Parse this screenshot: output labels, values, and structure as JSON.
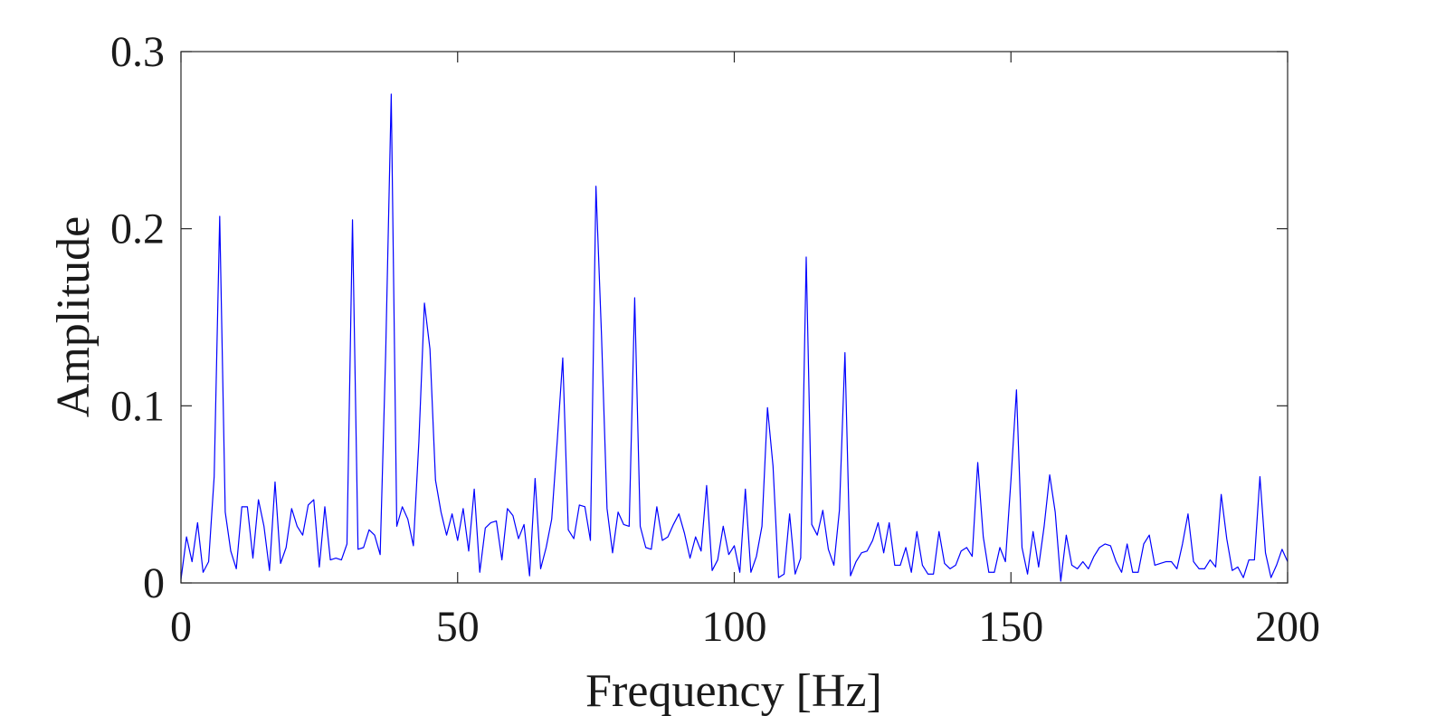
{
  "chart_data": {
    "type": "line",
    "title": "",
    "xlabel": "Frequency [Hz]",
    "ylabel": "Amplitude",
    "xlim": [
      0,
      200
    ],
    "ylim": [
      0,
      0.3
    ],
    "xticks": [
      0,
      50,
      100,
      150,
      200
    ],
    "xtick_labels": [
      "0",
      "50",
      "100",
      "150",
      "200"
    ],
    "yticks": [
      0,
      0.1,
      0.2,
      0.3
    ],
    "ytick_labels": [
      "0",
      "0.1",
      "0.2",
      "0.3"
    ],
    "grid": false,
    "box": true,
    "line_color": "#0000ff",
    "series": [
      {
        "x": [
          0,
          1,
          2,
          3,
          4,
          5,
          6,
          7,
          8,
          9,
          10,
          11,
          12,
          13,
          14,
          15,
          16,
          17,
          18,
          19,
          20,
          21,
          22,
          23,
          24,
          25,
          26,
          27,
          28,
          29,
          30,
          31,
          32,
          33,
          34,
          35,
          36,
          37,
          38,
          39,
          40,
          41,
          42,
          43,
          44,
          45,
          46,
          47,
          48,
          49,
          50,
          51,
          52,
          53,
          54,
          55,
          56,
          57,
          58,
          59,
          60,
          61,
          62,
          63,
          64,
          65,
          66,
          67,
          68,
          69,
          70,
          71,
          72,
          73,
          74,
          75,
          76,
          77,
          78,
          79,
          80,
          81,
          82,
          83,
          84,
          85,
          86,
          87,
          88,
          89,
          90,
          91,
          92,
          93,
          94,
          95,
          96,
          97,
          98,
          99,
          100,
          101,
          102,
          103,
          104,
          105,
          106,
          107,
          108,
          109,
          110,
          111,
          112,
          113,
          114,
          115,
          116,
          117,
          118,
          119,
          120,
          121,
          122,
          123,
          124,
          125,
          126,
          127,
          128,
          129,
          130,
          131,
          132,
          133,
          134,
          135,
          136,
          137,
          138,
          139,
          140,
          141,
          142,
          143,
          144,
          145,
          146,
          147,
          148,
          149,
          150,
          151,
          152,
          153,
          154,
          155,
          156,
          157,
          158,
          159,
          160,
          161,
          162,
          163,
          164,
          165,
          166,
          167,
          168,
          169,
          170,
          171,
          172,
          173,
          174,
          175,
          176,
          177,
          178,
          179,
          180,
          181,
          182,
          183,
          184,
          185,
          186,
          187,
          188,
          189,
          190,
          191,
          192,
          193,
          194,
          195,
          196,
          197,
          198,
          199,
          200
        ],
        "values": [
          0.002,
          0.026,
          0.012,
          0.034,
          0.006,
          0.012,
          0.06,
          0.207,
          0.04,
          0.018,
          0.008,
          0.043,
          0.043,
          0.014,
          0.047,
          0.032,
          0.007,
          0.057,
          0.011,
          0.02,
          0.042,
          0.032,
          0.027,
          0.044,
          0.047,
          0.009,
          0.043,
          0.013,
          0.014,
          0.013,
          0.022,
          0.205,
          0.019,
          0.02,
          0.03,
          0.027,
          0.016,
          0.13,
          0.276,
          0.032,
          0.043,
          0.036,
          0.021,
          0.08,
          0.158,
          0.132,
          0.058,
          0.04,
          0.027,
          0.039,
          0.024,
          0.042,
          0.018,
          0.053,
          0.006,
          0.031,
          0.034,
          0.035,
          0.013,
          0.042,
          0.038,
          0.025,
          0.033,
          0.004,
          0.059,
          0.008,
          0.02,
          0.036,
          0.08,
          0.127,
          0.03,
          0.025,
          0.044,
          0.043,
          0.024,
          0.224,
          0.14,
          0.042,
          0.017,
          0.04,
          0.033,
          0.032,
          0.161,
          0.032,
          0.02,
          0.019,
          0.043,
          0.024,
          0.026,
          0.033,
          0.039,
          0.028,
          0.014,
          0.026,
          0.018,
          0.055,
          0.007,
          0.013,
          0.032,
          0.016,
          0.021,
          0.006,
          0.053,
          0.006,
          0.015,
          0.032,
          0.099,
          0.066,
          0.003,
          0.005,
          0.039,
          0.005,
          0.014,
          0.184,
          0.033,
          0.027,
          0.041,
          0.019,
          0.01,
          0.041,
          0.13,
          0.004,
          0.012,
          0.017,
          0.018,
          0.024,
          0.034,
          0.017,
          0.034,
          0.01,
          0.01,
          0.02,
          0.006,
          0.029,
          0.01,
          0.005,
          0.005,
          0.029,
          0.011,
          0.008,
          0.01,
          0.018,
          0.02,
          0.015,
          0.068,
          0.026,
          0.006,
          0.006,
          0.02,
          0.012,
          0.058,
          0.109,
          0.02,
          0.005,
          0.029,
          0.009,
          0.032,
          0.061,
          0.04,
          0.001,
          0.027,
          0.01,
          0.008,
          0.012,
          0.008,
          0.015,
          0.02,
          0.022,
          0.021,
          0.012,
          0.006,
          0.022,
          0.006,
          0.006,
          0.022,
          0.027,
          0.01,
          0.011,
          0.012,
          0.012,
          0.008,
          0.022,
          0.039,
          0.012,
          0.008,
          0.008,
          0.013,
          0.009,
          0.05,
          0.025,
          0.007,
          0.009,
          0.003,
          0.013,
          0.013,
          0.06,
          0.017,
          0.003,
          0.01,
          0.019,
          0.012
        ]
      }
    ]
  }
}
